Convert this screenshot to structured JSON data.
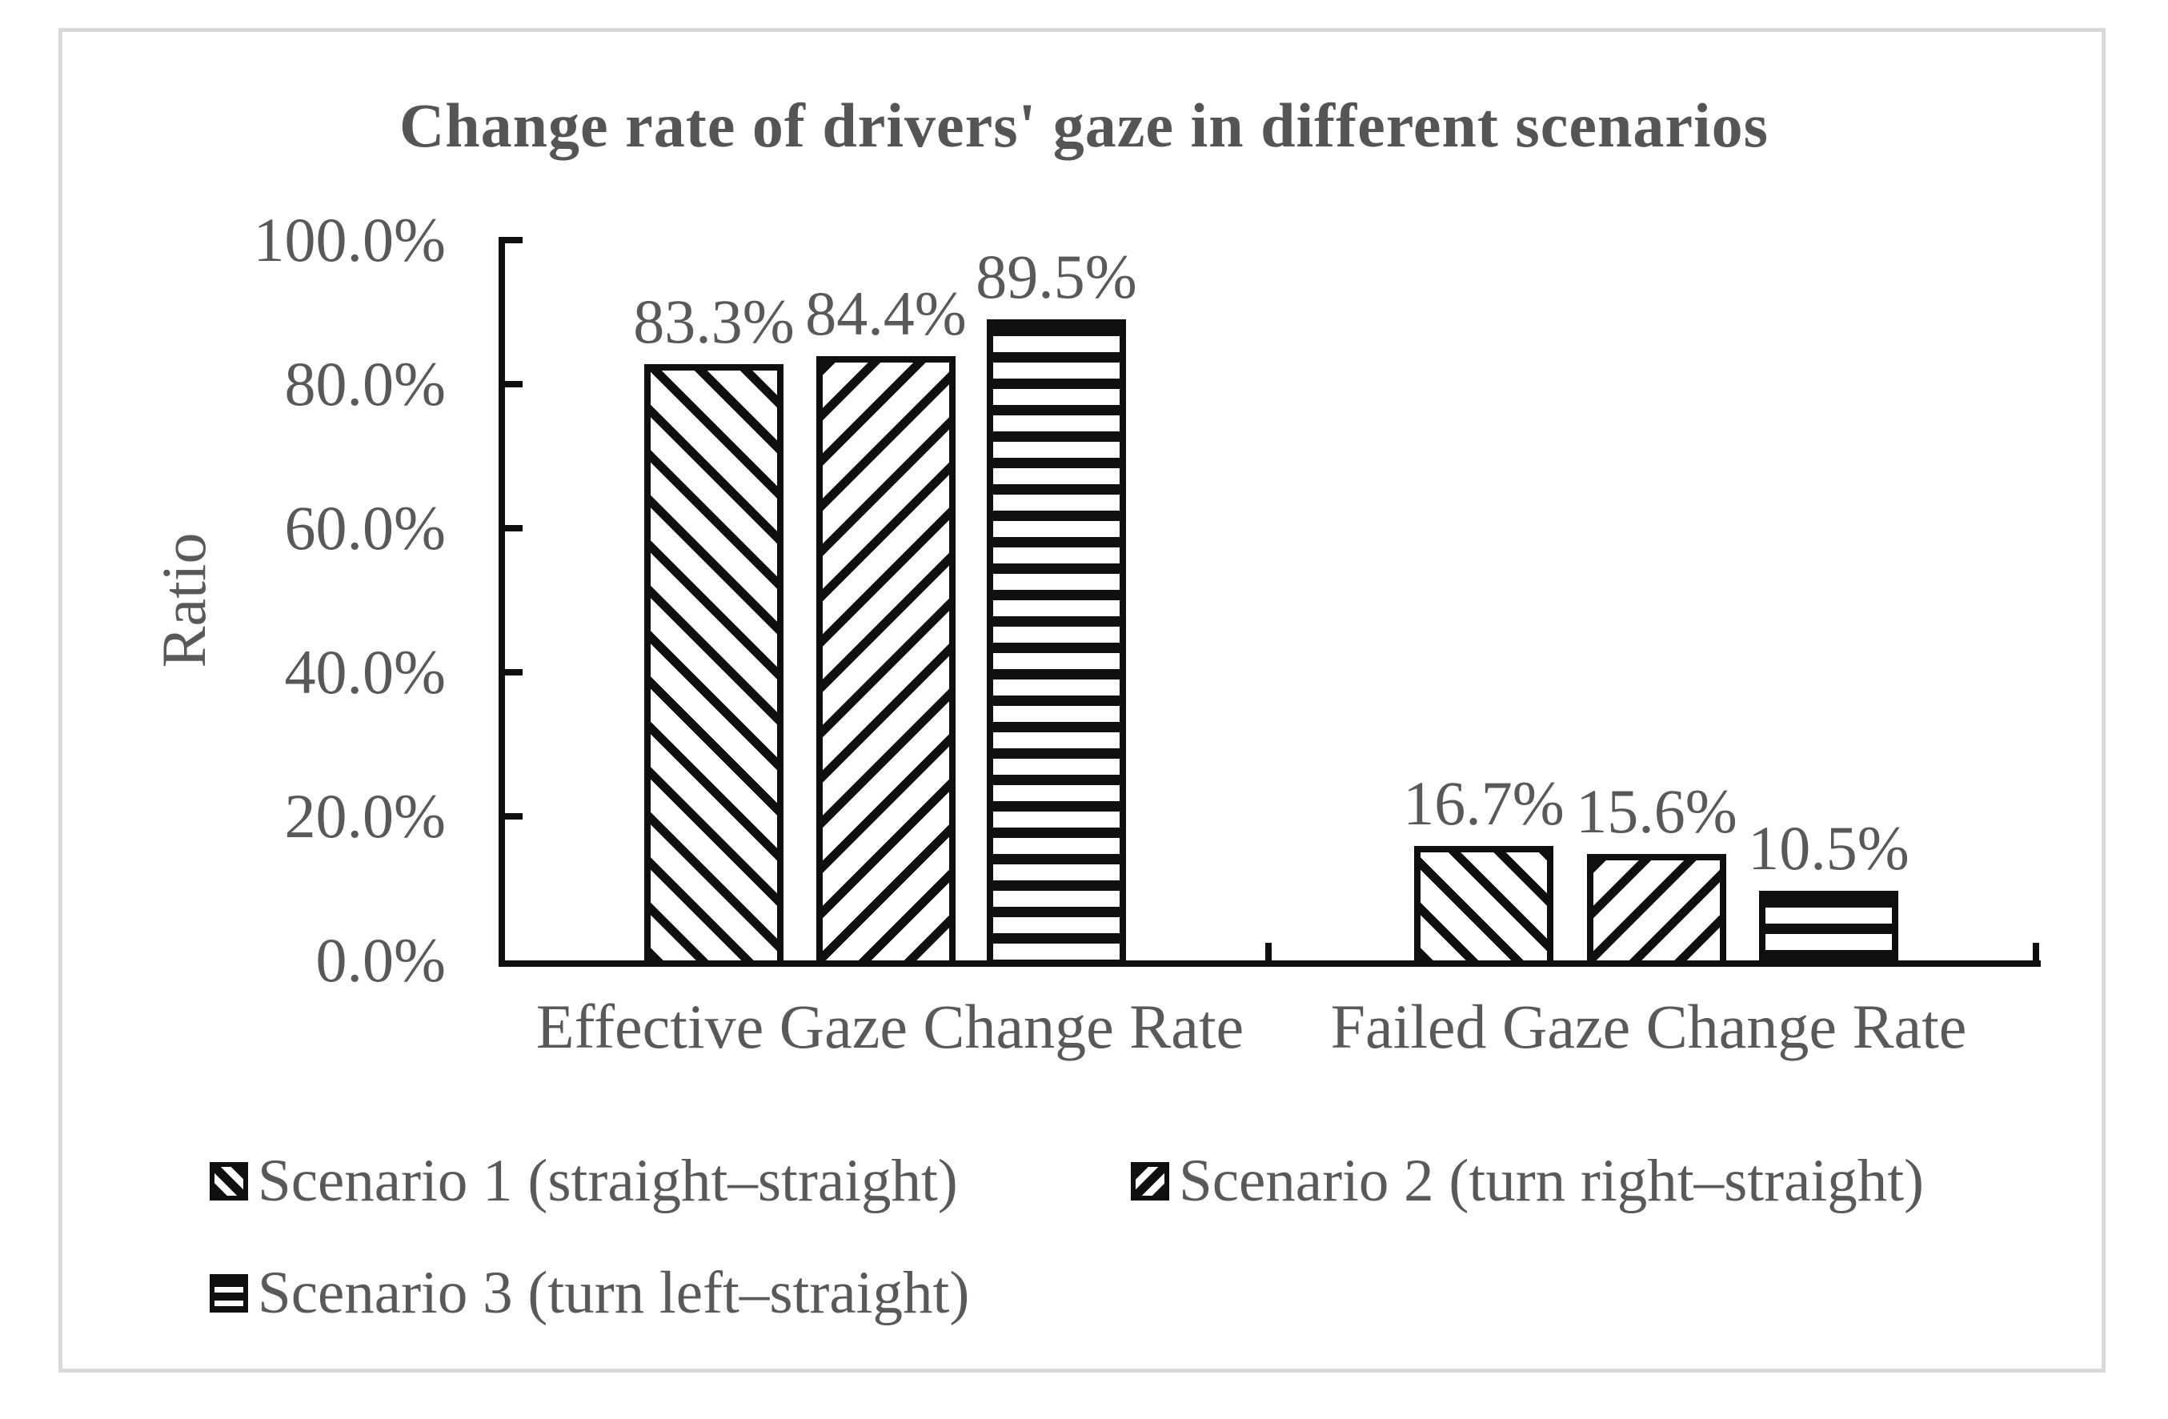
{
  "colors": {
    "text": "#595959",
    "title_text": "#555555",
    "bar_stroke": "#0f0f0f",
    "bar_fill": "#ffffff",
    "frame_border": "#d9d9d9"
  },
  "chart_data": {
    "type": "bar",
    "title": "Change rate of drivers' gaze in different scenarios",
    "ylabel": "Ratio",
    "xlabel": "",
    "categories": [
      "Effective Gaze Change Rate",
      "Failed Gaze Change Rate"
    ],
    "series": [
      {
        "name": "Scenario 1 (straight–straight)",
        "pattern": "diagonal-backslash",
        "values": [
          83.3,
          16.7
        ],
        "labels": [
          "83.3%",
          "16.7%"
        ]
      },
      {
        "name": "Scenario 2 (turn right–straight)",
        "pattern": "diagonal-slash",
        "values": [
          84.4,
          15.6
        ],
        "labels": [
          "84.4%",
          "15.6%"
        ]
      },
      {
        "name": "Scenario 3 (turn left–straight)",
        "pattern": "horizontal-lines",
        "values": [
          89.5,
          10.5
        ],
        "labels": [
          "89.5%",
          "10.5%"
        ]
      }
    ],
    "y_axis": {
      "min": 0,
      "max": 100,
      "tick_step": 20,
      "tick_labels": [
        "100.0%",
        "80.0%",
        "60.0%",
        "40.0%",
        "20.0%",
        "0.0%"
      ]
    },
    "grid": false,
    "legend_position": "bottom"
  }
}
